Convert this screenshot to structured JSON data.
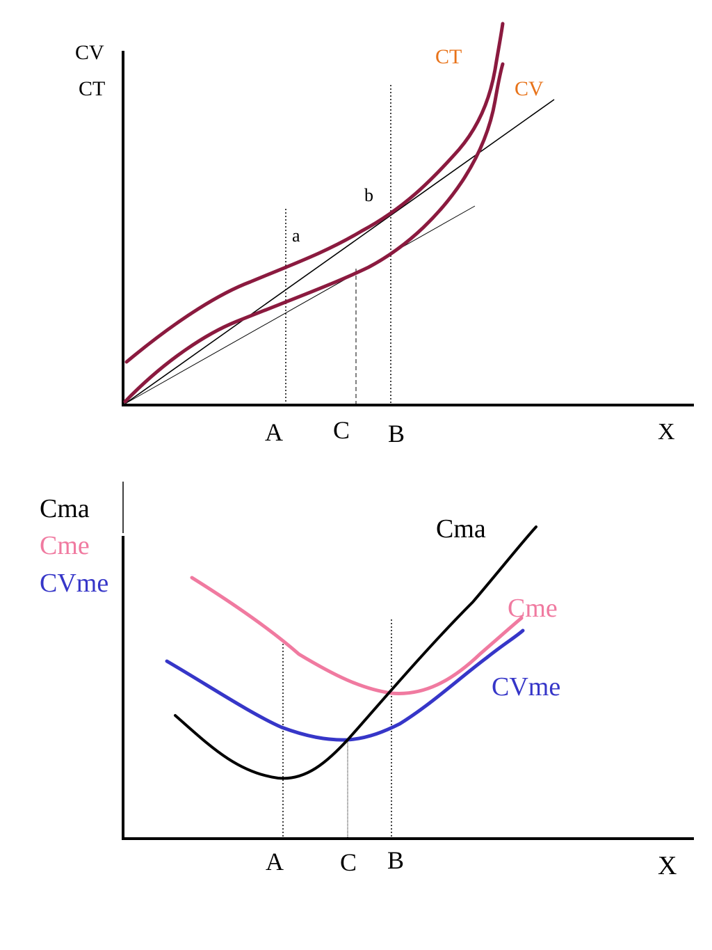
{
  "colors": {
    "axis": "#000000",
    "cost_curves": "#8B1A3F",
    "label_orange": "#E8731A",
    "cme": "#F07AA0",
    "cvme": "#3636C8",
    "cma": "#000000"
  },
  "top_diagram": {
    "y_axis_labels": [
      "CV",
      "CT"
    ],
    "x_axis_label": "X",
    "curve_labels": {
      "ct": "CT",
      "cv": "CV"
    },
    "point_labels": {
      "a": "a",
      "b": "b"
    },
    "x_markers": {
      "a": "A",
      "c": "C",
      "b": "B"
    }
  },
  "bottom_diagram": {
    "y_axis_labels": {
      "cma": "Cma",
      "cme": "Cme",
      "cvme": "CVme"
    },
    "x_axis_label": "X",
    "curve_labels": {
      "cma": "Cma",
      "cme": "Cme",
      "cvme": "CVme"
    },
    "x_markers": {
      "a": "A",
      "c": "C",
      "b": "B"
    }
  }
}
